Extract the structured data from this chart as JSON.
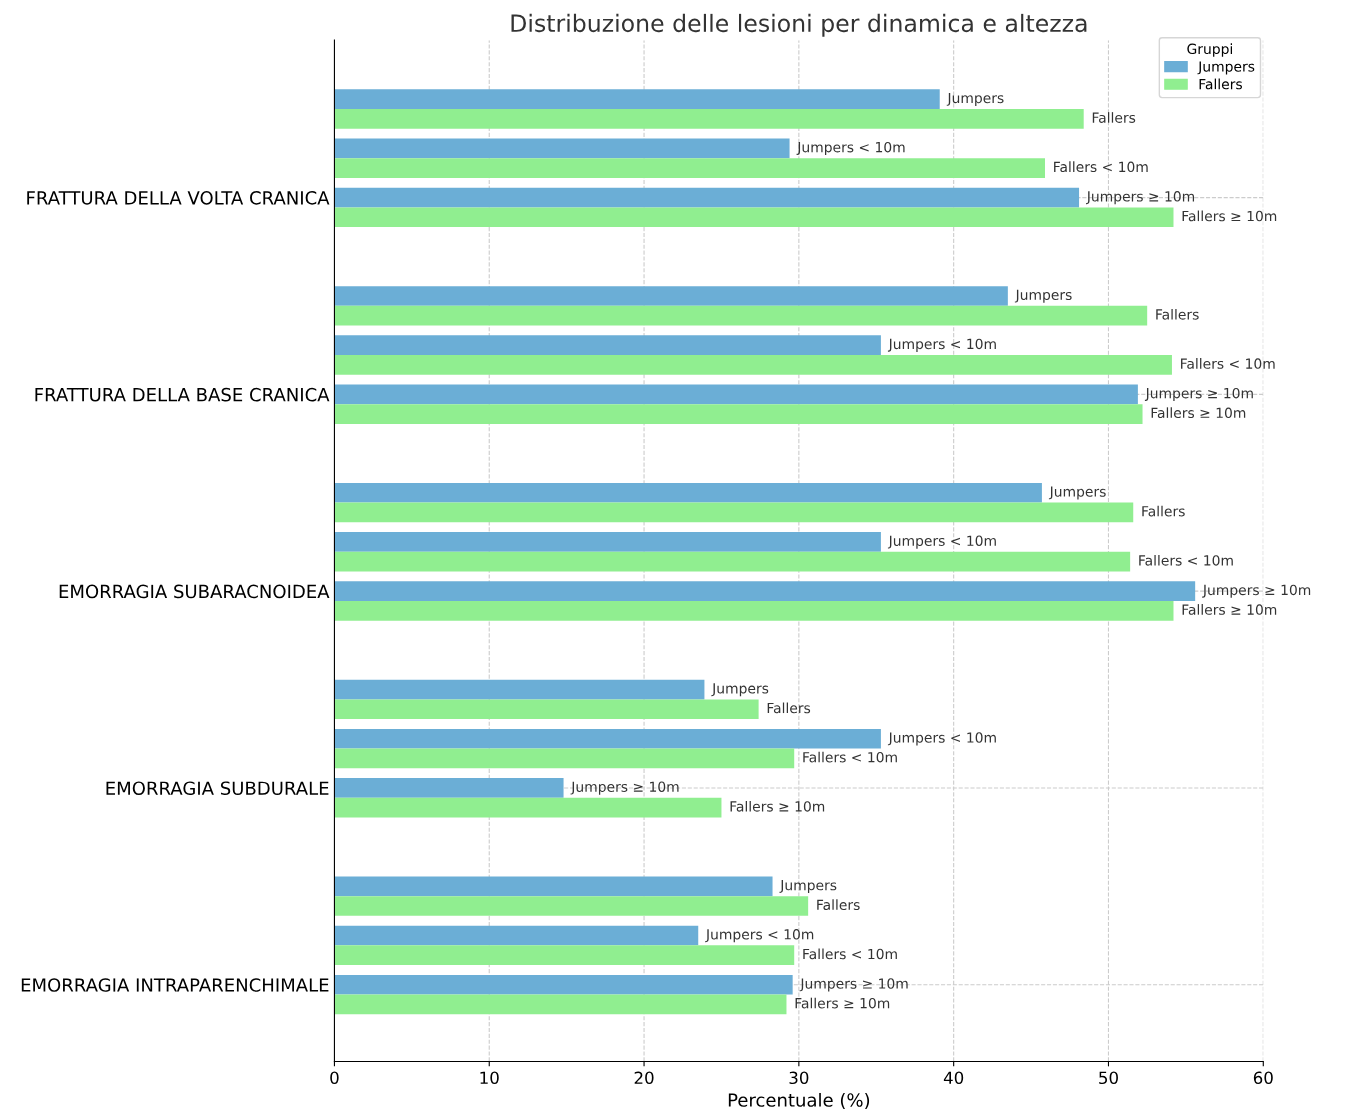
{
  "chart_data": {
    "type": "bar",
    "orientation": "horizontal",
    "title": "Distribuzione delle lesioni per dinamica e altezza",
    "xlabel": "Percentuale (%)",
    "legend_title": "Gruppi",
    "legend": "top right",
    "grid": true,
    "categories": [
      "FRATTURA DELLA VOLTA CRANICA",
      "FRATTURA DELLA BASE CRANICA",
      "EMORRAGIA SUBARACNOIDEA",
      "EMORRAGIA SUBDURALE",
      "EMORRAGIA INTRAPARENCHIMALE"
    ],
    "xlim": [
      0,
      60
    ],
    "xticks": [
      0,
      10,
      20,
      30,
      40,
      50,
      60
    ],
    "series": [
      {
        "name": "Jumpers",
        "color": "#6baed6",
        "values": [
          39.1,
          43.5,
          45.7,
          23.9,
          28.3
        ]
      },
      {
        "name": "Fallers",
        "color": "#90ee90",
        "values": [
          48.4,
          52.5,
          51.6,
          27.4,
          30.6
        ]
      },
      {
        "name": "Jumpers < 10m",
        "color": "#6baed6",
        "values": [
          29.4,
          35.3,
          35.3,
          35.3,
          23.5
        ]
      },
      {
        "name": "Fallers < 10m",
        "color": "#90ee90",
        "values": [
          45.9,
          54.1,
          51.4,
          29.7,
          29.7
        ]
      },
      {
        "name": "Jumpers ≥ 10m",
        "color": "#6baed6",
        "values": [
          48.1,
          51.9,
          55.6,
          14.8,
          29.6
        ]
      },
      {
        "name": "Fallers ≥ 10m",
        "color": "#90ee90",
        "values": [
          54.2,
          52.2,
          54.2,
          25.0,
          29.2
        ]
      }
    ]
  }
}
